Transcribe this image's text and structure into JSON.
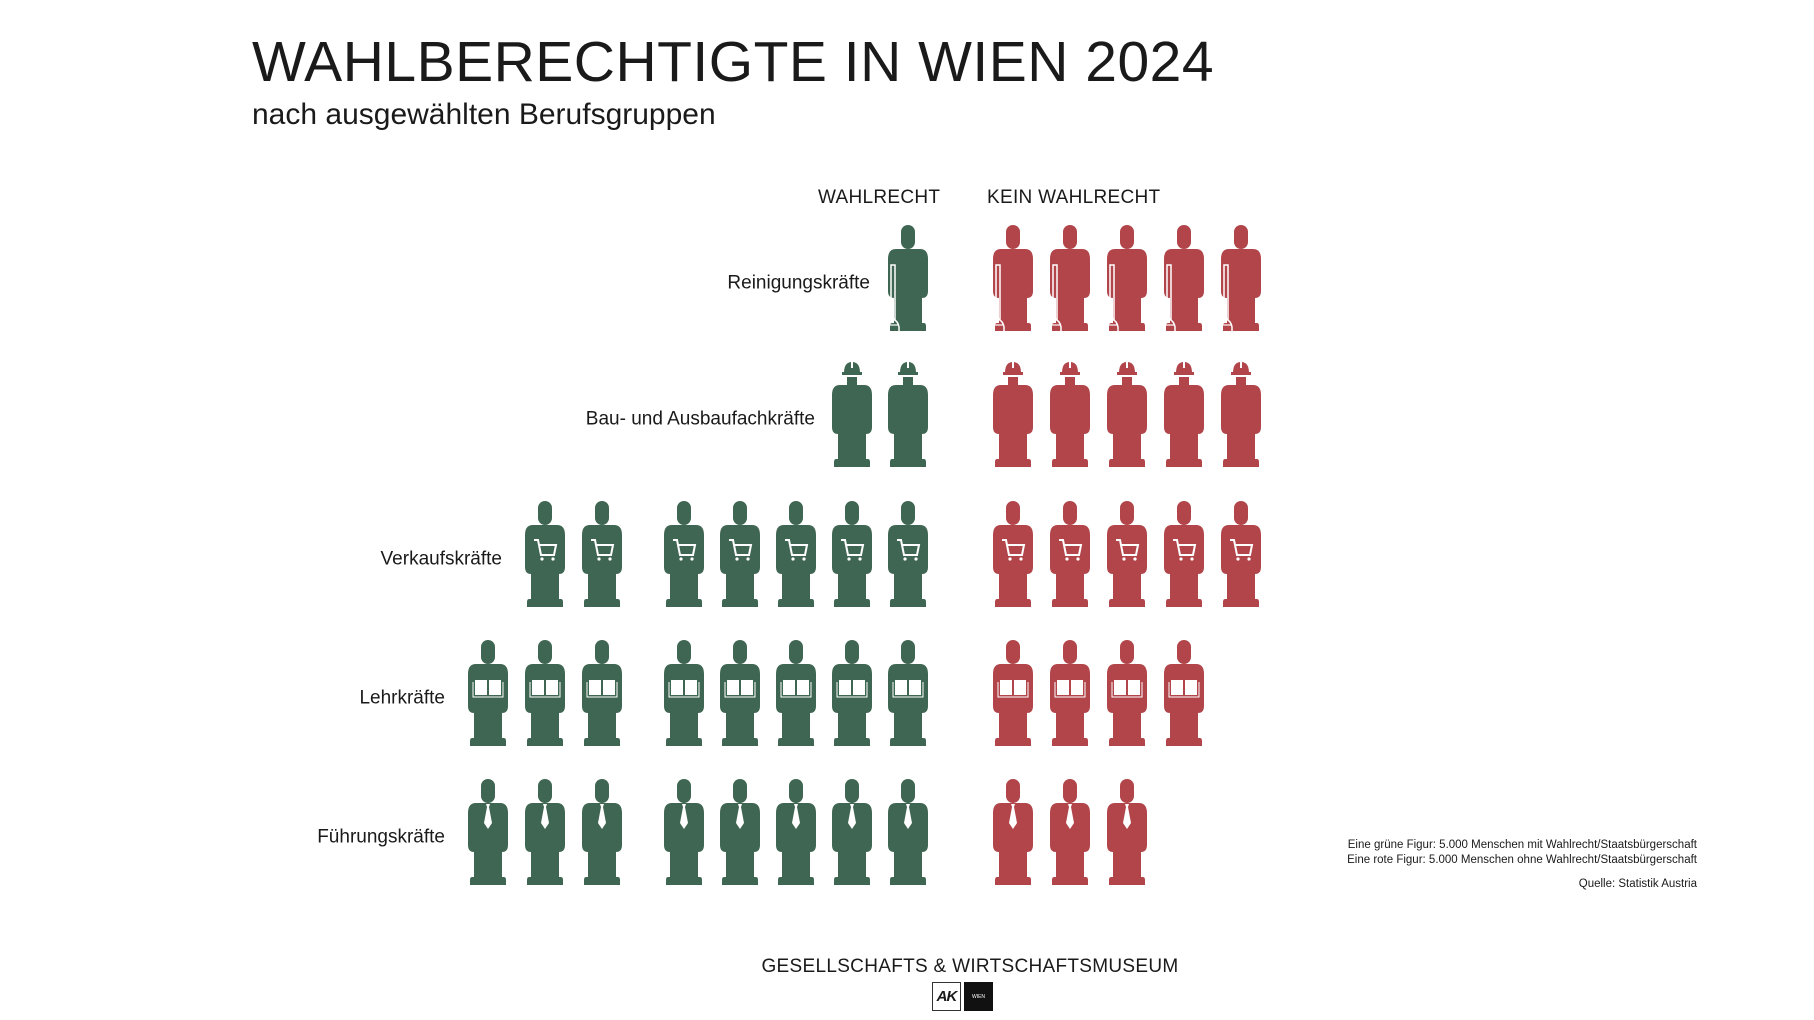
{
  "title": "WAHLBERECHTIGTE IN WIEN 2024",
  "subtitle": "nach ausgewählten Berufsgruppen",
  "columns": {
    "with_vote": "WAHLRECHT",
    "without_vote": "KEIN WAHLRECHT"
  },
  "colors": {
    "with_vote": "#3f6652",
    "without_vote": "#b1454a"
  },
  "legend": {
    "green": "Eine grüne Figur: 5.000 Menschen mit Wahlrecht/Staatsbürgerschaft",
    "red": "Eine rote Figur: 5.000 Menschen ohne Wahlrecht/Staatsbürgerschaft",
    "source": "Quelle: Statistik Austria"
  },
  "footer": {
    "museum": "GESELLSCHAFTS & WIRTSCHAFTSMUSEUM",
    "logo_left": "AK",
    "logo_right": "WIEN"
  },
  "chart_data": {
    "type": "pictogram",
    "title": "WAHLBERECHTIGTE IN WIEN 2024",
    "subtitle": "nach ausgewählten Berufsgruppen",
    "unit": "1 Figur = 5.000 Menschen",
    "categories": [
      "Reinigungskräfte",
      "Bau- und Ausbaufachkräfte",
      "Verkaufskräfte",
      "Lehrkräfte",
      "Führungskräfte"
    ],
    "icons": [
      "broom",
      "hard-hat",
      "shopping-cart",
      "book",
      "tie"
    ],
    "series": [
      {
        "name": "WAHLRECHT",
        "color": "#3f6652",
        "figures": [
          1,
          2,
          7,
          8,
          8
        ],
        "values": [
          5000,
          10000,
          35000,
          40000,
          40000
        ]
      },
      {
        "name": "KEIN WAHLRECHT",
        "color": "#b1454a",
        "figures": [
          5,
          5,
          5,
          4,
          3
        ],
        "values": [
          25000,
          25000,
          25000,
          20000,
          15000
        ]
      }
    ],
    "source": "Statistik Austria"
  }
}
